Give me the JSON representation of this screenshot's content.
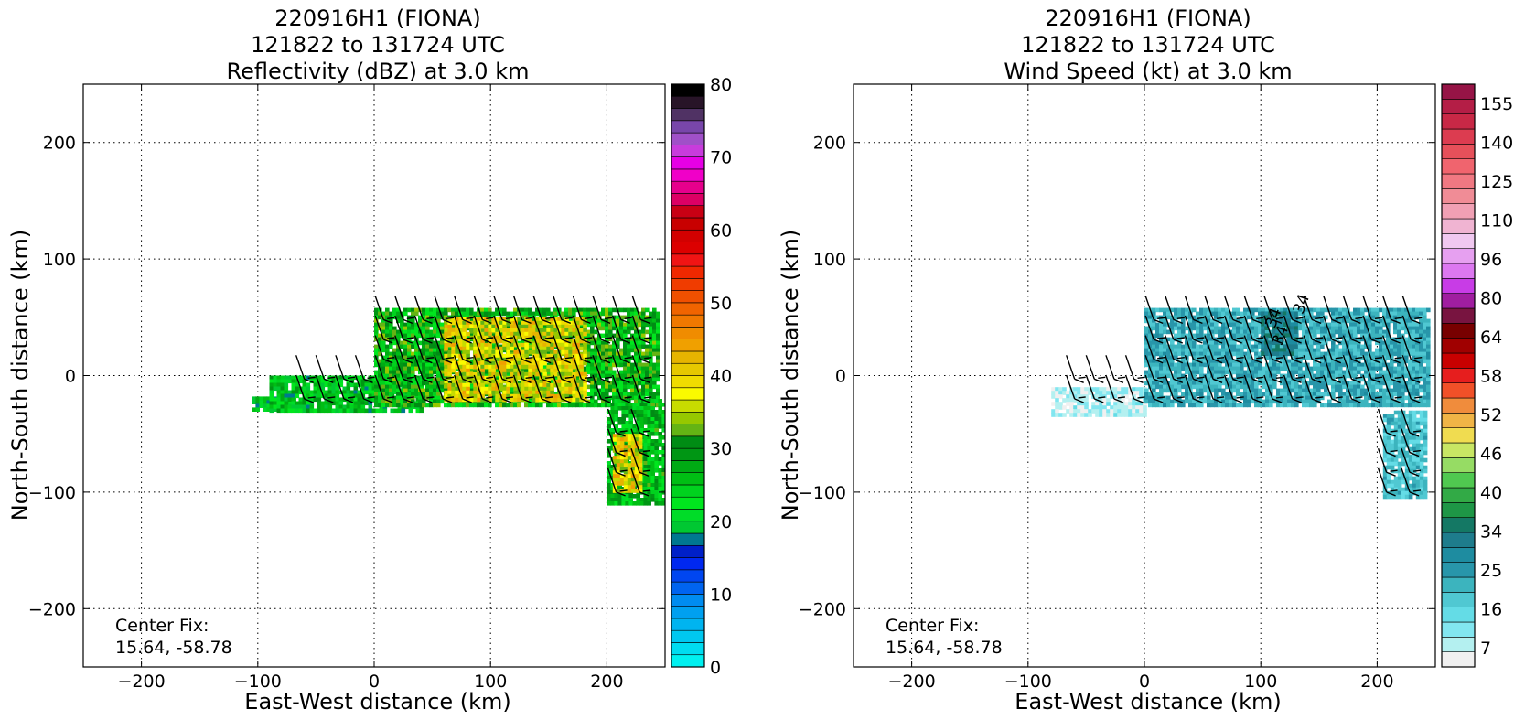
{
  "figure": {
    "panels": [
      {
        "id": "reflectivity",
        "title_lines": [
          "220916H1 (FIONA)",
          "121822 to 131724 UTC",
          "Reflectivity (dBZ) at 3.0 km"
        ],
        "center_fix_label": "Center Fix:",
        "center_fix_value": "15.64, -58.78"
      },
      {
        "id": "wind",
        "title_lines": [
          "220916H1 (FIONA)",
          "121822 to 131724 UTC",
          "Wind Speed (kt) at 3.0 km"
        ],
        "center_fix_label": "Center Fix:",
        "center_fix_value": "15.64, -58.78"
      }
    ]
  },
  "chart_data": [
    {
      "type": "heatmap",
      "title": "220916H1 (FIONA) 121822 to 131724 UTC Reflectivity (dBZ) at 3.0 km",
      "xlabel": "East-West distance (km)",
      "ylabel": "North-South distance (km)",
      "xlim": [
        -250,
        250
      ],
      "ylim": [
        -250,
        250
      ],
      "xticks": [
        -200,
        -100,
        0,
        100,
        200
      ],
      "yticks": [
        -200,
        -100,
        0,
        100,
        200
      ],
      "tick_labels": [
        "−200",
        "−100",
        "0",
        "100",
        "200"
      ],
      "grid": true,
      "colorbar": {
        "min": 0,
        "max": 80,
        "levels": 32,
        "tick_values": [
          0,
          10,
          20,
          30,
          40,
          50,
          60,
          70,
          80
        ],
        "tick_labels": [
          "0",
          "10",
          "20",
          "30",
          "40",
          "50",
          "60",
          "70",
          "80"
        ],
        "colors": [
          "#00f0f0",
          "#00dcf0",
          "#00c8f0",
          "#00b4f0",
          "#00a0f0",
          "#008cf0",
          "#0064f0",
          "#0046f0",
          "#0028f0",
          "#0020c8",
          "#007890",
          "#00c832",
          "#00dc28",
          "#00e61e",
          "#00d21e",
          "#00be14",
          "#00aa14",
          "#009614",
          "#008c14",
          "#64b414",
          "#96c800",
          "#c8dc00",
          "#fafa00",
          "#f0dc00",
          "#e6c800",
          "#e6b400",
          "#f0a000",
          "#f08c00",
          "#f07800",
          "#f06400",
          "#f05000",
          "#f03c00"
        ],
        "upper_colors": [
          "#f02800",
          "#f01414",
          "#dc0000",
          "#d20000",
          "#c80000",
          "#c80014",
          "#dc0064",
          "#e6008c",
          "#f000c8",
          "#e600e6",
          "#c83cdc",
          "#a050c8",
          "#7846aa",
          "#503264",
          "#281428",
          "#000000"
        ]
      },
      "echo_regions": [
        {
          "x": [
            -105,
            -70
          ],
          "y": [
            -28,
            -18
          ],
          "value": 22
        },
        {
          "x": [
            -90,
            40
          ],
          "y": [
            -30,
            0
          ],
          "value": 24
        },
        {
          "x": [
            0,
            245
          ],
          "y": [
            -25,
            58
          ],
          "value": 28
        },
        {
          "x": [
            60,
            180
          ],
          "y": [
            -20,
            50
          ],
          "value": 38
        },
        {
          "x": [
            200,
            248
          ],
          "y": [
            -110,
            -20
          ],
          "value": 26
        },
        {
          "x": [
            205,
            230
          ],
          "y": [
            -100,
            -50
          ],
          "value": 38
        }
      ]
    },
    {
      "type": "heatmap",
      "title": "220916H1 (FIONA) 121822 to 131724 UTC Wind Speed (kt) at 3.0 km",
      "xlabel": "East-West distance (km)",
      "ylabel": "North-South distance (km)",
      "xlim": [
        -250,
        250
      ],
      "ylim": [
        -250,
        250
      ],
      "xticks": [
        -200,
        -100,
        0,
        100,
        200
      ],
      "yticks": [
        -200,
        -100,
        0,
        100,
        200
      ],
      "tick_labels": [
        "−200",
        "−100",
        "0",
        "100",
        "200"
      ],
      "grid": true,
      "colorbar": {
        "tick_labels": [
          "7",
          "16",
          "25",
          "34",
          "40",
          "46",
          "52",
          "58",
          "64",
          "80",
          "96",
          "110",
          "125",
          "140",
          "155"
        ],
        "colors": [
          "#f0f0f0",
          "#b4f0f0",
          "#82e6f0",
          "#64dce6",
          "#50c8d2",
          "#3cb4be",
          "#2896aa",
          "#1e8ca0",
          "#1e7c8c",
          "#147864",
          "#1e9646",
          "#32aa46",
          "#50c850",
          "#96dc64",
          "#c8e664",
          "#f0dc50",
          "#f0b446",
          "#f08c3c",
          "#f05028",
          "#e61e1e",
          "#c80000",
          "#a00000",
          "#780000",
          "#781440",
          "#a01ea0",
          "#c83ce6",
          "#dc78f0",
          "#e6a0f0",
          "#f0c8f0",
          "#f0b4d2",
          "#f0a0b4",
          "#f08c96",
          "#f07882",
          "#f0646e",
          "#e6505a",
          "#dc3c50",
          "#c82846",
          "#b41e46",
          "#961446"
        ]
      },
      "speed_regions": [
        {
          "x": [
            -80,
            0
          ],
          "y": [
            -35,
            -10
          ],
          "value": 7
        },
        {
          "x": [
            0,
            245
          ],
          "y": [
            -25,
            58
          ],
          "value": 24
        },
        {
          "x": [
            100,
            130
          ],
          "y": [
            20,
            55
          ],
          "value": 36
        },
        {
          "x": [
            205,
            240
          ],
          "y": [
            -105,
            -30
          ],
          "value": 20
        }
      ],
      "contour_labels": [
        "34",
        "34",
        "34"
      ]
    }
  ]
}
